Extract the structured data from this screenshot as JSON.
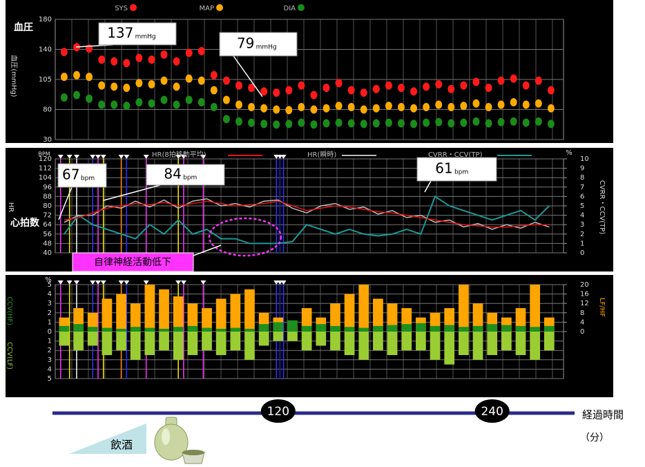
{
  "chart_data": [
    {
      "type": "scatter",
      "title": "血圧",
      "y_label": "血圧(mmHg)",
      "x": [
        0,
        7,
        14,
        21,
        28,
        35,
        42,
        49,
        56,
        63,
        70,
        77,
        84,
        91,
        98,
        105,
        112,
        119,
        126,
        133,
        140,
        147,
        154,
        161,
        168,
        175,
        182,
        189,
        196,
        203,
        210,
        217,
        224,
        231,
        238,
        245,
        252,
        259,
        266,
        273
      ],
      "xlim": [
        -5,
        280
      ],
      "ylim": [
        30,
        180
      ],
      "yticks": [
        30,
        80,
        105,
        140,
        180
      ],
      "yscale": "piecewise",
      "grid": true,
      "series": [
        {
          "name": "SYS",
          "color": "#ff1a1a",
          "values": [
            137,
            143,
            141,
            128,
            126,
            124,
            130,
            128,
            134,
            126,
            136,
            138,
            110,
            104,
            100,
            98,
            95,
            94,
            96,
            100,
            92,
            98,
            102,
            96,
            94,
            97,
            100,
            98,
            95,
            99,
            101,
            97,
            100,
            103,
            98,
            104,
            106,
            100,
            104,
            96
          ]
        },
        {
          "name": "MAP",
          "color": "#ffaa00",
          "values": [
            108,
            110,
            108,
            100,
            99,
            98,
            102,
            101,
            104,
            99,
            106,
            104,
            96,
            88,
            84,
            82,
            81,
            80,
            79,
            82,
            80,
            81,
            83,
            82,
            80,
            81,
            83,
            82,
            81,
            82,
            84,
            82,
            83,
            85,
            82,
            84,
            86,
            84,
            85,
            81
          ]
        },
        {
          "name": "DIA",
          "color": "#1a8c1a",
          "values": [
            90,
            92,
            89,
            84,
            84,
            83,
            86,
            85,
            88,
            84,
            88,
            86,
            82,
            64,
            60,
            58,
            56,
            55,
            56,
            58,
            55,
            57,
            58,
            57,
            56,
            57,
            58,
            57,
            56,
            58,
            59,
            57,
            58,
            60,
            57,
            59,
            60,
            58,
            60,
            56
          ]
        }
      ],
      "annotations": [
        {
          "text": "137",
          "unit": "mmHg"
        },
        {
          "text": "79",
          "unit": "mmHg"
        }
      ]
    },
    {
      "type": "line",
      "title": "心拍数",
      "y_label": "HR",
      "y_unit": "BPM",
      "y2_label": "CVRR・CCV(TP)",
      "y2_unit": "%",
      "x": [
        0,
        8,
        16,
        24,
        32,
        40,
        48,
        56,
        64,
        72,
        80,
        88,
        96,
        104,
        112,
        120,
        128,
        136,
        144,
        152,
        160,
        168,
        176,
        184,
        192,
        200,
        208,
        216,
        224,
        232,
        240,
        248,
        256,
        264,
        272
      ],
      "xlim": [
        -5,
        280
      ],
      "ylim": [
        40,
        120
      ],
      "yticks": [
        40,
        48,
        56,
        64,
        72,
        80,
        88,
        96,
        104,
        112,
        120
      ],
      "y2lim": [
        0,
        10
      ],
      "y2ticks": [
        0,
        1,
        2,
        3,
        4,
        5,
        6,
        7,
        8,
        9,
        10
      ],
      "grid": true,
      "series": [
        {
          "name": "CVRR・CCV(TP)",
          "color": "#1a9a9a",
          "axis": "y2",
          "values": [
            2,
            4,
            3,
            2.5,
            2,
            1.5,
            3,
            2,
            3.5,
            2,
            2.5,
            1.5,
            1.5,
            1,
            1,
            1,
            1.2,
            3,
            2.5,
            2,
            2.5,
            2,
            1.8,
            2,
            2.5,
            2,
            6,
            5,
            4.5,
            4,
            3.5,
            4,
            4.5,
            3.5,
            5
          ]
        },
        {
          "name": "HR(瞬時)",
          "color": "#bbbbbb",
          "values": [
            66,
            72,
            72,
            80,
            78,
            84,
            79,
            85,
            78,
            84,
            86,
            80,
            82,
            79,
            84,
            85,
            78,
            74,
            80,
            82,
            77,
            79,
            73,
            76,
            70,
            72,
            66,
            68,
            62,
            65,
            60,
            64,
            61,
            66,
            62
          ]
        },
        {
          "name": "HR(8拍移動平均)",
          "color": "#e81010",
          "values": [
            68,
            70,
            74,
            78,
            80,
            82,
            81,
            83,
            80,
            82,
            84,
            82,
            80,
            81,
            82,
            84,
            80,
            76,
            78,
            80,
            79,
            77,
            75,
            74,
            72,
            70,
            68,
            66,
            64,
            63,
            62,
            62,
            63,
            64,
            64
          ]
        }
      ],
      "events": [
        {
          "x": -2,
          "color": "#ff33ff"
        },
        {
          "x": 3,
          "color": "#ffee00"
        },
        {
          "x": 7,
          "color": "#ffffff"
        },
        {
          "x": 16,
          "color": "#3333ff"
        },
        {
          "x": 19,
          "color": "#ff33ff"
        },
        {
          "x": 22,
          "color": "#ffee00"
        },
        {
          "x": 32,
          "color": "#ff8800"
        },
        {
          "x": 35,
          "color": "#3333ff"
        },
        {
          "x": 46,
          "color": "#ff33ff"
        },
        {
          "x": 64,
          "color": "#ffee00"
        },
        {
          "x": 67,
          "color": "#ff33ff"
        },
        {
          "x": 78,
          "color": "#ff33ff"
        },
        {
          "x": 119,
          "color": "#3333ff"
        },
        {
          "x": 121,
          "color": "#2222cc"
        },
        {
          "x": 123,
          "color": "#3333ff"
        }
      ],
      "annotations": [
        {
          "text": "67",
          "unit": "bpm"
        },
        {
          "text": "84",
          "unit": "bpm"
        },
        {
          "text": "61",
          "unit": "bpm"
        },
        {
          "text": "自律神経活動低下"
        }
      ]
    },
    {
      "type": "bar",
      "y_label_top": "CCV(HF)",
      "y_label_bottom": "CCV(LF)",
      "y_unit": "%",
      "y2_label": "LF/HF",
      "x": [
        0,
        8,
        16,
        24,
        32,
        40,
        48,
        56,
        64,
        72,
        80,
        88,
        96,
        104,
        112,
        120,
        128,
        136,
        144,
        152,
        160,
        168,
        176,
        184,
        192,
        200,
        208,
        216,
        224,
        232,
        240,
        248,
        256,
        264,
        272
      ],
      "xlim": [
        -5,
        280
      ],
      "ylim": [
        -5,
        5
      ],
      "yticks": [
        {
          "value": -5,
          "label": "5"
        },
        {
          "value": -4,
          "label": "4"
        },
        {
          "value": -3,
          "label": "3"
        },
        {
          "value": -2,
          "label": "2"
        },
        {
          "value": -1,
          "label": "1"
        },
        0,
        1,
        2,
        3,
        4,
        5
      ],
      "y2lim": [
        -20,
        20
      ],
      "y2ticks": [
        0,
        4,
        8,
        12,
        16,
        20
      ],
      "grid": true,
      "series": [
        {
          "name": "LF/HF",
          "color": "#ffa500",
          "axis": "y2",
          "values": [
            6,
            10,
            8,
            14,
            16,
            12,
            20,
            18,
            15,
            12,
            10,
            14,
            16,
            18,
            8,
            6,
            3,
            10,
            6,
            12,
            16,
            20,
            14,
            12,
            10,
            6,
            8,
            10,
            20,
            12,
            8,
            6,
            10,
            20,
            6
          ]
        },
        {
          "name": "CCV(HF)",
          "color": "#1f8f1f",
          "values": [
            0.6,
            0.8,
            0.5,
            0.4,
            0.3,
            0.5,
            0.4,
            0.3,
            0.5,
            0.6,
            0.4,
            0.3,
            0.4,
            0.3,
            0.8,
            1,
            1.2,
            0.6,
            0.8,
            0.6,
            0.5,
            0.4,
            0.6,
            0.7,
            0.8,
            0.9,
            0.6,
            0.7,
            0.5,
            0.6,
            0.8,
            0.7,
            0.6,
            0.5,
            0.6
          ]
        },
        {
          "name": "CCV(LF)",
          "color": "#9acd32",
          "values": [
            -1.5,
            -2,
            -1.5,
            -2.5,
            -2,
            -3,
            -2.5,
            -2,
            -3,
            -2.5,
            -2,
            -2.5,
            -2,
            -3,
            -1.5,
            -1,
            -1,
            -2,
            -1.5,
            -2,
            -2.5,
            -3,
            -2,
            -2.5,
            -2,
            -2,
            -3,
            -3.5,
            -2.5,
            -3,
            -2.5,
            -2,
            -2.5,
            -3,
            -2
          ]
        }
      ],
      "events": [
        {
          "x": -2,
          "color": "#ff33ff"
        },
        {
          "x": 3,
          "color": "#ffee00"
        },
        {
          "x": 7,
          "color": "#ffffff"
        },
        {
          "x": 16,
          "color": "#3333ff"
        },
        {
          "x": 19,
          "color": "#ff33ff"
        },
        {
          "x": 22,
          "color": "#ffee00"
        },
        {
          "x": 32,
          "color": "#ff8800"
        },
        {
          "x": 35,
          "color": "#3333ff"
        },
        {
          "x": 46,
          "color": "#ff33ff"
        },
        {
          "x": 64,
          "color": "#ffee00"
        },
        {
          "x": 67,
          "color": "#ff33ff"
        },
        {
          "x": 78,
          "color": "#ff33ff"
        },
        {
          "x": 119,
          "color": "#3333ff"
        },
        {
          "x": 121,
          "color": "#2222cc"
        },
        {
          "x": 123,
          "color": "#3333ff"
        }
      ]
    }
  ],
  "timeline": {
    "xlim": [
      -5,
      280
    ],
    "xticks": [
      120,
      240
    ],
    "label": "経過時間",
    "unit": "（分）"
  },
  "drink": "飲酒"
}
